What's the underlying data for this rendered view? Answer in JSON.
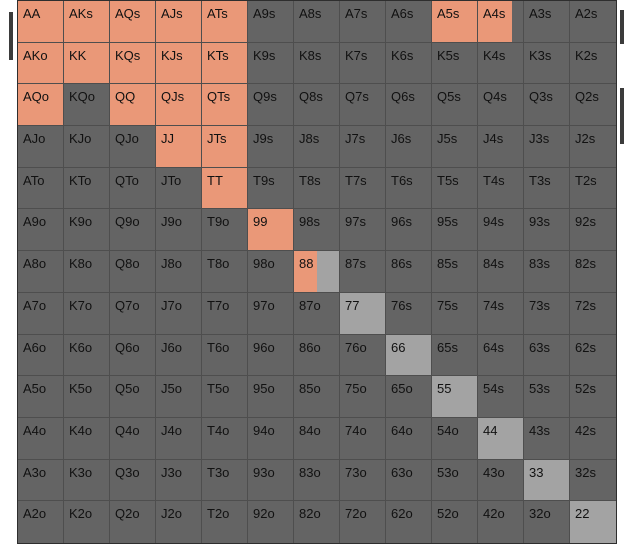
{
  "grid": {
    "rows": [
      [
        "AA",
        "AKs",
        "AQs",
        "AJs",
        "ATs",
        "A9s",
        "A8s",
        "A7s",
        "A6s",
        "A5s",
        "A4s",
        "A3s",
        "A2s"
      ],
      [
        "AKo",
        "KK",
        "KQs",
        "KJs",
        "KTs",
        "K9s",
        "K8s",
        "K7s",
        "K6s",
        "K5s",
        "K4s",
        "K3s",
        "K2s"
      ],
      [
        "AQo",
        "KQo",
        "QQ",
        "QJs",
        "QTs",
        "Q9s",
        "Q8s",
        "Q7s",
        "Q6s",
        "Q5s",
        "Q4s",
        "Q3s",
        "Q2s"
      ],
      [
        "AJo",
        "KJo",
        "QJo",
        "JJ",
        "JTs",
        "J9s",
        "J8s",
        "J7s",
        "J6s",
        "J5s",
        "J4s",
        "J3s",
        "J2s"
      ],
      [
        "ATo",
        "KTo",
        "QTo",
        "JTo",
        "TT",
        "T9s",
        "T8s",
        "T7s",
        "T6s",
        "T5s",
        "T4s",
        "T3s",
        "T2s"
      ],
      [
        "A9o",
        "K9o",
        "Q9o",
        "J9o",
        "T9o",
        "99",
        "98s",
        "97s",
        "96s",
        "95s",
        "94s",
        "93s",
        "92s"
      ],
      [
        "A8o",
        "K8o",
        "Q8o",
        "J8o",
        "T8o",
        "98o",
        "88",
        "87s",
        "86s",
        "85s",
        "84s",
        "83s",
        "82s"
      ],
      [
        "A7o",
        "K7o",
        "Q7o",
        "J7o",
        "T7o",
        "97o",
        "87o",
        "77",
        "76s",
        "75s",
        "74s",
        "73s",
        "72s"
      ],
      [
        "A6o",
        "K6o",
        "Q6o",
        "J6o",
        "T6o",
        "96o",
        "86o",
        "76o",
        "66",
        "65s",
        "64s",
        "63s",
        "62s"
      ],
      [
        "A5o",
        "K5o",
        "Q5o",
        "J5o",
        "T5o",
        "95o",
        "85o",
        "75o",
        "65o",
        "55",
        "54s",
        "53s",
        "52s"
      ],
      [
        "A4o",
        "K4o",
        "Q4o",
        "J4o",
        "T4o",
        "94o",
        "84o",
        "74o",
        "64o",
        "54o",
        "44",
        "43s",
        "42s"
      ],
      [
        "A3o",
        "K3o",
        "Q3o",
        "J3o",
        "T3o",
        "93o",
        "83o",
        "73o",
        "63o",
        "53o",
        "43o",
        "33",
        "32s"
      ],
      [
        "A2o",
        "K2o",
        "Q2o",
        "J2o",
        "T2o",
        "92o",
        "82o",
        "72o",
        "62o",
        "52o",
        "42o",
        "32o",
        "22"
      ]
    ],
    "range_fraction": {
      "AA": 1,
      "AKs": 1,
      "AQs": 1,
      "AJs": 1,
      "ATs": 1,
      "A5s": 1,
      "A4s": 0.75,
      "AKo": 1,
      "KK": 1,
      "KQs": 1,
      "KJs": 1,
      "KTs": 1,
      "AQo": 1,
      "QQ": 1,
      "QJs": 1,
      "QTs": 1,
      "JJ": 1,
      "JTs": 1,
      "TT": 1,
      "99": 1,
      "88": 0.5
    },
    "colors": {
      "range": "#ea9878",
      "cell": "#646464",
      "pair_unselected": "#a3a3a3"
    }
  }
}
